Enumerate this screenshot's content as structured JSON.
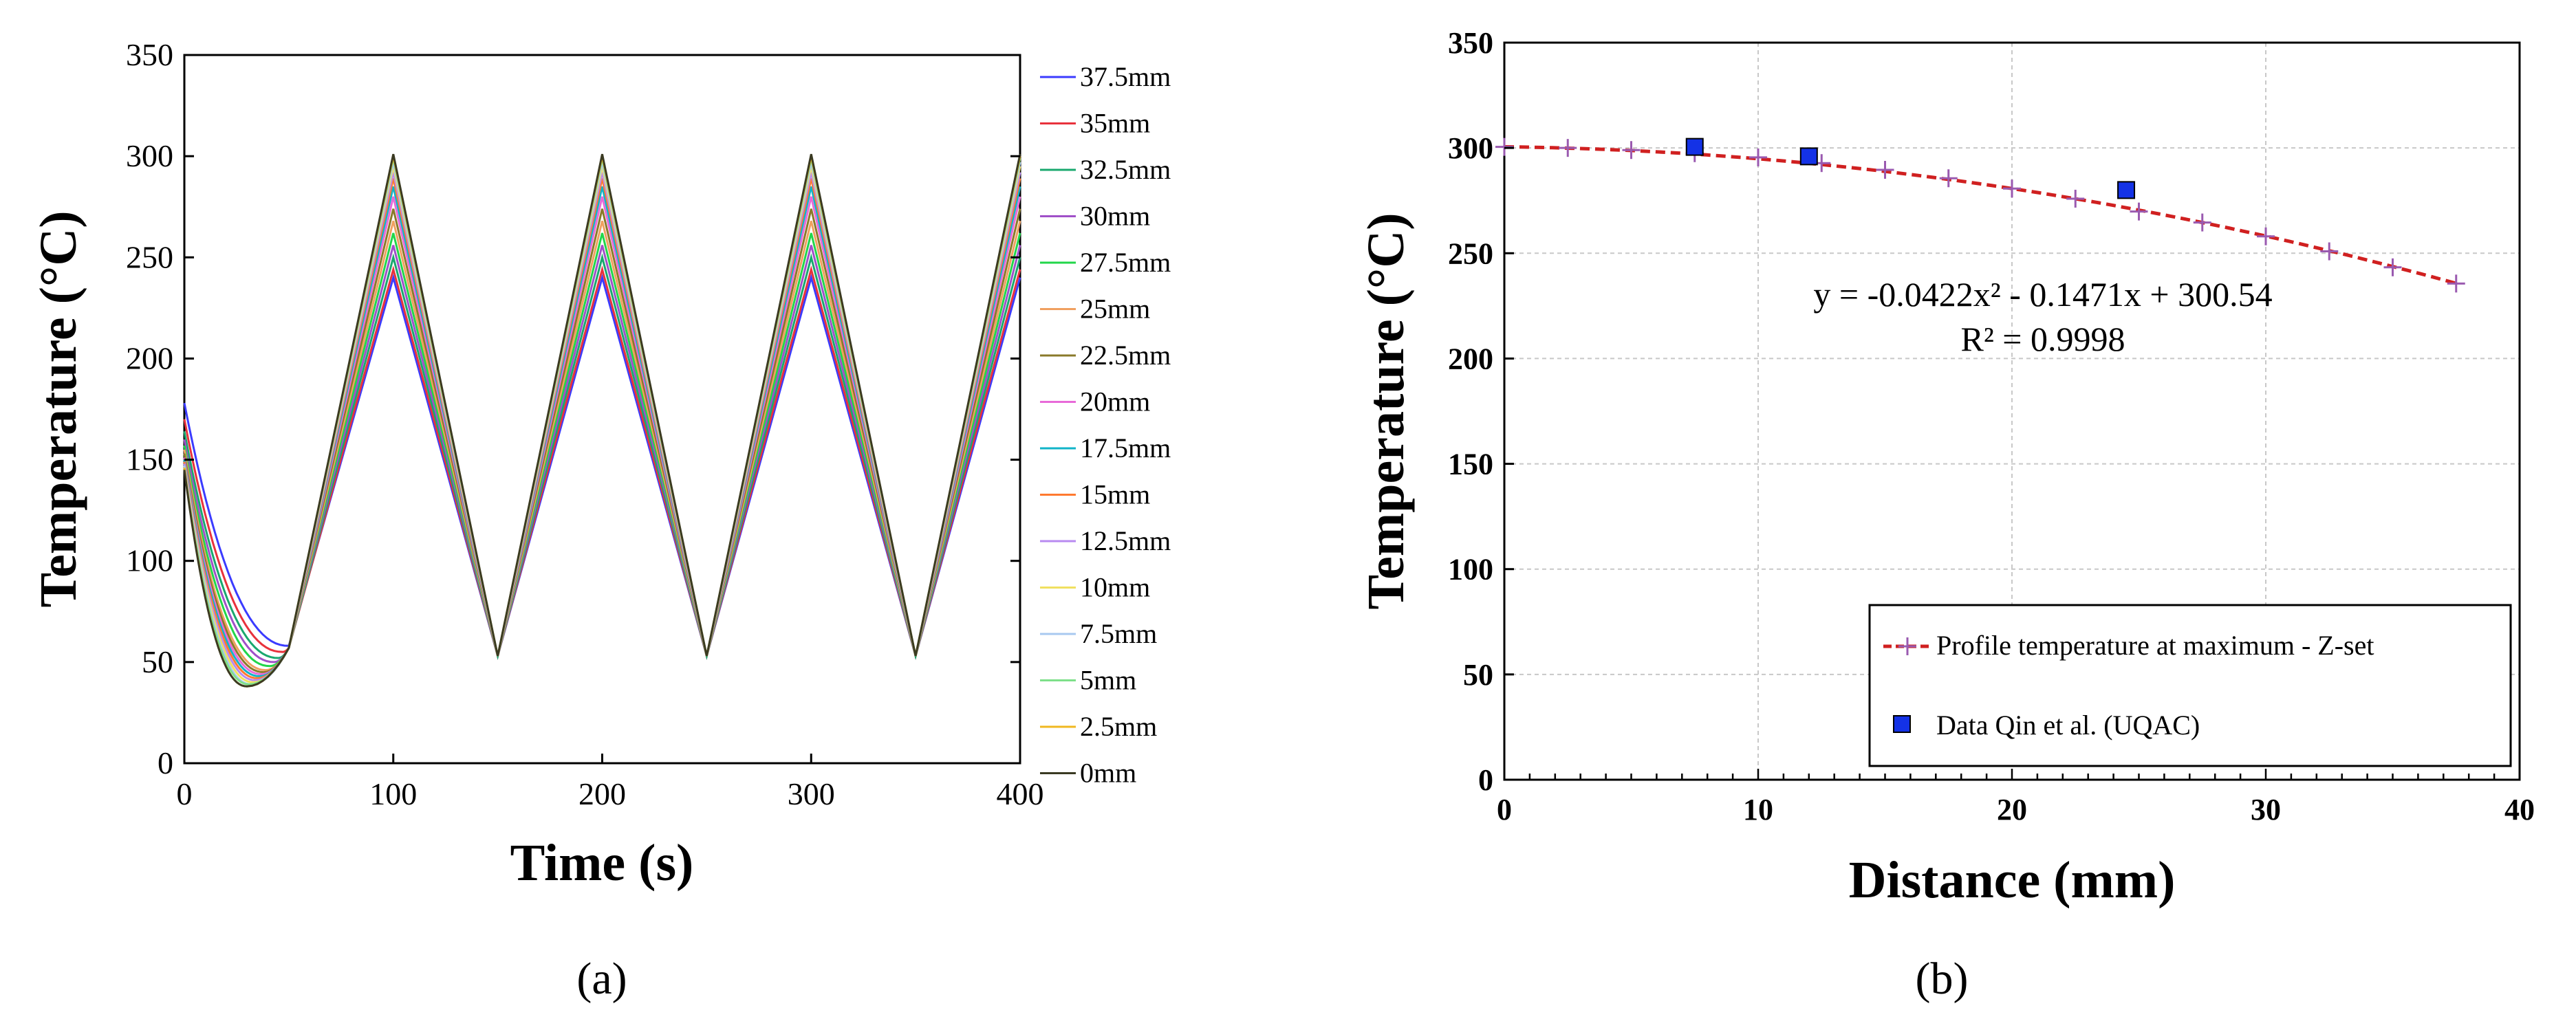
{
  "chart_data": [
    {
      "panel": "(a)",
      "type": "line",
      "xlabel": "Time (s)",
      "ylabel": "Temperature (°C)",
      "xlim": [
        0,
        400
      ],
      "ylim": [
        0,
        350
      ],
      "xticks": [
        "0",
        "100",
        "200",
        "300",
        "400"
      ],
      "yticks": [
        "0",
        "50",
        "100",
        "150",
        "200",
        "250",
        "300",
        "350"
      ],
      "legend_position": "right-outside",
      "series": [
        {
          "name": "37.5mm",
          "color": "#3b3bff",
          "start": 178,
          "min": 58,
          "min_t": 50,
          "peak": 240
        },
        {
          "name": "35mm",
          "color": "#e8323c",
          "start": 170,
          "min": 55,
          "min_t": 47,
          "peak": 244
        },
        {
          "name": "32.5mm",
          "color": "#19a86e",
          "start": 164,
          "min": 52,
          "min_t": 45,
          "peak": 250
        },
        {
          "name": "30mm",
          "color": "#a050c8",
          "start": 160,
          "min": 50,
          "min_t": 43,
          "peak": 256
        },
        {
          "name": "27.5mm",
          "color": "#22d64a",
          "start": 157,
          "min": 48,
          "min_t": 41,
          "peak": 262
        },
        {
          "name": "25mm",
          "color": "#f0a060",
          "start": 155,
          "min": 46,
          "min_t": 39,
          "peak": 268
        },
        {
          "name": "22.5mm",
          "color": "#8a7a2a",
          "start": 153,
          "min": 45,
          "min_t": 38,
          "peak": 274
        },
        {
          "name": "20mm",
          "color": "#e86ad8",
          "start": 151,
          "min": 44,
          "min_t": 37,
          "peak": 280
        },
        {
          "name": "17.5mm",
          "color": "#10b4c8",
          "start": 150,
          "min": 43,
          "min_t": 36,
          "peak": 285
        },
        {
          "name": "15mm",
          "color": "#ff7a30",
          "start": 149,
          "min": 42,
          "min_t": 35,
          "peak": 289
        },
        {
          "name": "12.5mm",
          "color": "#b88af0",
          "start": 148,
          "min": 41,
          "min_t": 34,
          "peak": 292
        },
        {
          "name": "10mm",
          "color": "#f0e060",
          "start": 147,
          "min": 40,
          "min_t": 33,
          "peak": 295
        },
        {
          "name": "7.5mm",
          "color": "#a8c8f0",
          "start": 147,
          "min": 39,
          "min_t": 32,
          "peak": 297
        },
        {
          "name": "5mm",
          "color": "#7ee08a",
          "start": 146,
          "min": 39,
          "min_t": 31,
          "peak": 299
        },
        {
          "name": "2.5mm",
          "color": "#f0b820",
          "start": 146,
          "min": 38,
          "min_t": 30,
          "peak": 300
        },
        {
          "name": "0mm",
          "color": "#3a3a22",
          "start": 145,
          "min": 38,
          "min_t": 30,
          "peak": 301
        }
      ],
      "cycle": {
        "low_value": 53,
        "low_times": [
          150,
          250,
          350
        ],
        "peak_times": [
          100,
          200,
          300,
          400
        ]
      }
    },
    {
      "panel": "(b)",
      "type": "scatter",
      "xlabel": "Distance (mm)",
      "ylabel": "Temperature (°C)",
      "xlim": [
        0,
        40
      ],
      "ylim": [
        0,
        350
      ],
      "xticks": [
        "0",
        "10",
        "20",
        "30",
        "40"
      ],
      "yticks": [
        "0",
        "50",
        "100",
        "150",
        "200",
        "250",
        "300",
        "350"
      ],
      "grid": true,
      "legend_position": "bottom-right",
      "fit": {
        "a": -0.0422,
        "b": -0.1471,
        "c": 300.54,
        "color": "#d02020"
      },
      "equation": "y = -0.0422x² - 0.1471x + 300.54",
      "r_squared": "R² = 0.9998",
      "series": [
        {
          "name": "Profile temperature at maximum - Z-set",
          "marker": "plus",
          "color": "#9a5ab0",
          "x": [
            0,
            2.5,
            5,
            7.5,
            10,
            12.5,
            15,
            17.5,
            20,
            22.5,
            25,
            27.5,
            30,
            32.5,
            35,
            37.5
          ],
          "y": [
            300.5,
            300,
            299,
            297.5,
            295.5,
            292.8,
            289.6,
            285.6,
            280.7,
            275.9,
            269.8,
            264.6,
            258,
            250.9,
            243.3,
            235.6
          ]
        },
        {
          "name": "Data Qin et al. (UQAC)",
          "marker": "square",
          "color": "#1432e6",
          "x": [
            7.5,
            12,
            24.5
          ],
          "y": [
            300.5,
            296,
            280
          ]
        }
      ]
    }
  ],
  "panel_labels": {
    "a": "(a)",
    "b": "(b)"
  }
}
